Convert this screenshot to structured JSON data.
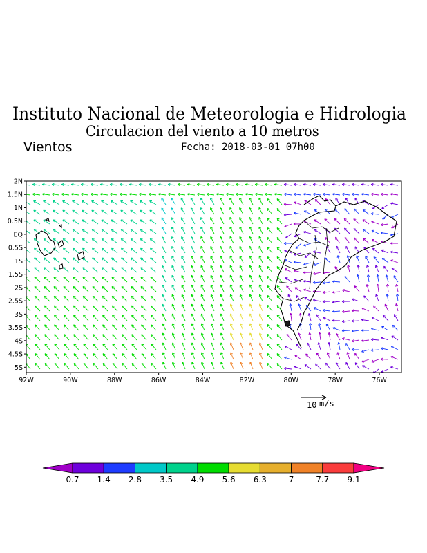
{
  "header": {
    "title": "Instituto Nacional de Meteorologia e Hidrologia",
    "subtitle": "Circulacion del viento a 10 metros",
    "variable": "Vientos",
    "date": "Fecha: 2018-03-01 07h00"
  },
  "map": {
    "lon_range": [
      -92,
      -75
    ],
    "lat_range": [
      -5.2,
      2
    ],
    "lat_labels": [
      {
        "v": 2,
        "t": "2N"
      },
      {
        "v": 1.5,
        "t": "1.5N"
      },
      {
        "v": 1,
        "t": "1N"
      },
      {
        "v": 0.5,
        "t": "0.5N"
      },
      {
        "v": 0,
        "t": "EQ"
      },
      {
        "v": -0.5,
        "t": "0.5S"
      },
      {
        "v": -1,
        "t": "1S"
      },
      {
        "v": -1.5,
        "t": "1.5S"
      },
      {
        "v": -2,
        "t": "2S"
      },
      {
        "v": -2.5,
        "t": "2.5S"
      },
      {
        "v": -3,
        "t": "3S"
      },
      {
        "v": -3.5,
        "t": "3.5S"
      },
      {
        "v": -4,
        "t": "4S"
      },
      {
        "v": -4.5,
        "t": "4.5S"
      },
      {
        "v": -5,
        "t": "5S"
      }
    ],
    "lon_labels": [
      {
        "v": -92,
        "t": "92W"
      },
      {
        "v": -90,
        "t": "90W"
      },
      {
        "v": -88,
        "t": "88W"
      },
      {
        "v": -86,
        "t": "86W"
      },
      {
        "v": -84,
        "t": "84W"
      },
      {
        "v": -82,
        "t": "82W"
      },
      {
        "v": -80,
        "t": "80W"
      },
      {
        "v": -78,
        "t": "78W"
      },
      {
        "v": -76,
        "t": "76W"
      }
    ],
    "reference_vector": {
      "value": 10,
      "unit": "m/s",
      "label": "10",
      "unit_label": "m/s"
    }
  },
  "colorbar": {
    "labels": [
      "0.7",
      "1.4",
      "2.8",
      "3.5",
      "4.9",
      "5.6",
      "6.3",
      "7",
      "7.7",
      "9.1"
    ],
    "colors": [
      "#a000c8",
      "#6e00dc",
      "#1e3cff",
      "#00c8c8",
      "#00d28c",
      "#00dc00",
      "#e6dc32",
      "#e6af2d",
      "#f08228",
      "#fa3c3c",
      "#f00082"
    ]
  },
  "chart_data": {
    "type": "vector-field",
    "title": "Circulacion del viento a 10 metros",
    "variable": "Vientos",
    "units": "m/s",
    "lon_range": [
      -92,
      -75
    ],
    "lat_range": [
      -5,
      2
    ],
    "speed_levels": [
      0.7,
      1.4,
      2.8,
      3.5,
      4.9,
      5.6,
      6.3,
      7,
      7.7,
      9.1
    ],
    "reference_vector_ms": 10
  }
}
